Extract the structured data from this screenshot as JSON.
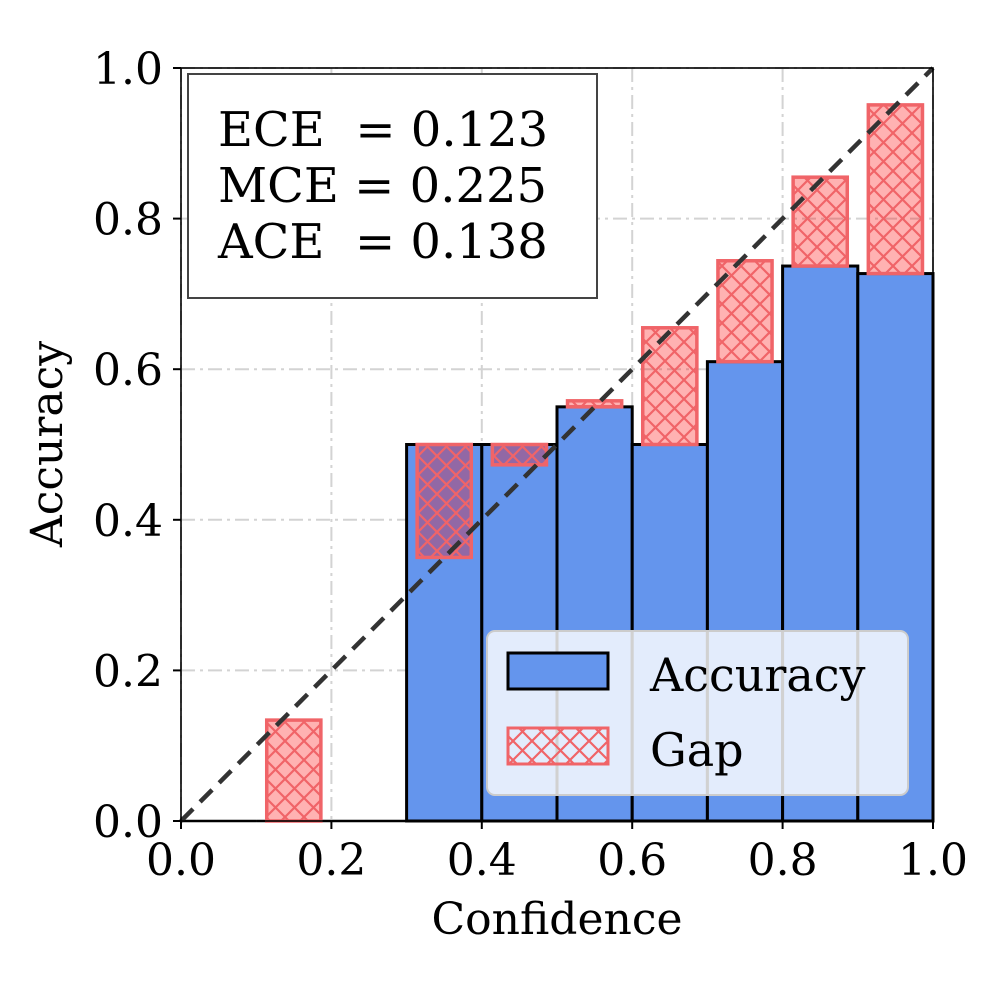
{
  "chart_data": {
    "type": "bar",
    "xlabel": "Confidence",
    "ylabel": "Accuracy",
    "xlim": [
      0.0,
      1.0
    ],
    "ylim": [
      0.0,
      1.0
    ],
    "xticks": [
      "0.0",
      "0.2",
      "0.4",
      "0.6",
      "0.8",
      "1.0"
    ],
    "yticks": [
      "0.0",
      "0.2",
      "0.4",
      "0.6",
      "0.8",
      "1.0"
    ],
    "grid": true,
    "diagonal": "perfect calibration (dashed)",
    "bin_edges": [
      0.0,
      0.1,
      0.2,
      0.3,
      0.4,
      0.5,
      0.6,
      0.7,
      0.8,
      0.9,
      1.0
    ],
    "series": [
      {
        "name": "Accuracy",
        "values": [
          0.0,
          0.0,
          0.0,
          0.5,
          0.5,
          0.55,
          0.5,
          0.61,
          0.737,
          0.727
        ]
      },
      {
        "name": "Gap",
        "bin_centers": [
          0.15,
          0.35,
          0.45,
          0.55,
          0.65,
          0.75,
          0.85,
          0.95
        ],
        "bottom": [
          0.0,
          0.35,
          0.473,
          0.55,
          0.5,
          0.61,
          0.737,
          0.727
        ],
        "top": [
          0.134,
          0.5,
          0.5,
          0.558,
          0.655,
          0.744,
          0.855,
          0.951
        ]
      }
    ],
    "metrics": [
      {
        "text": "ECE  = 0.123"
      },
      {
        "text": "MCE = 0.225"
      },
      {
        "text": "ACE  = 0.138"
      }
    ],
    "legend": {
      "location": "lower-right",
      "entries": [
        "Accuracy",
        "Gap"
      ]
    },
    "colors": {
      "accuracy_fill": "#6495ed",
      "bar_edge": "#000000",
      "gap_edge": "#f06468",
      "gap_fill": "#ff0000",
      "grid": "#d3d3d3",
      "diagonal": "#333333"
    }
  }
}
